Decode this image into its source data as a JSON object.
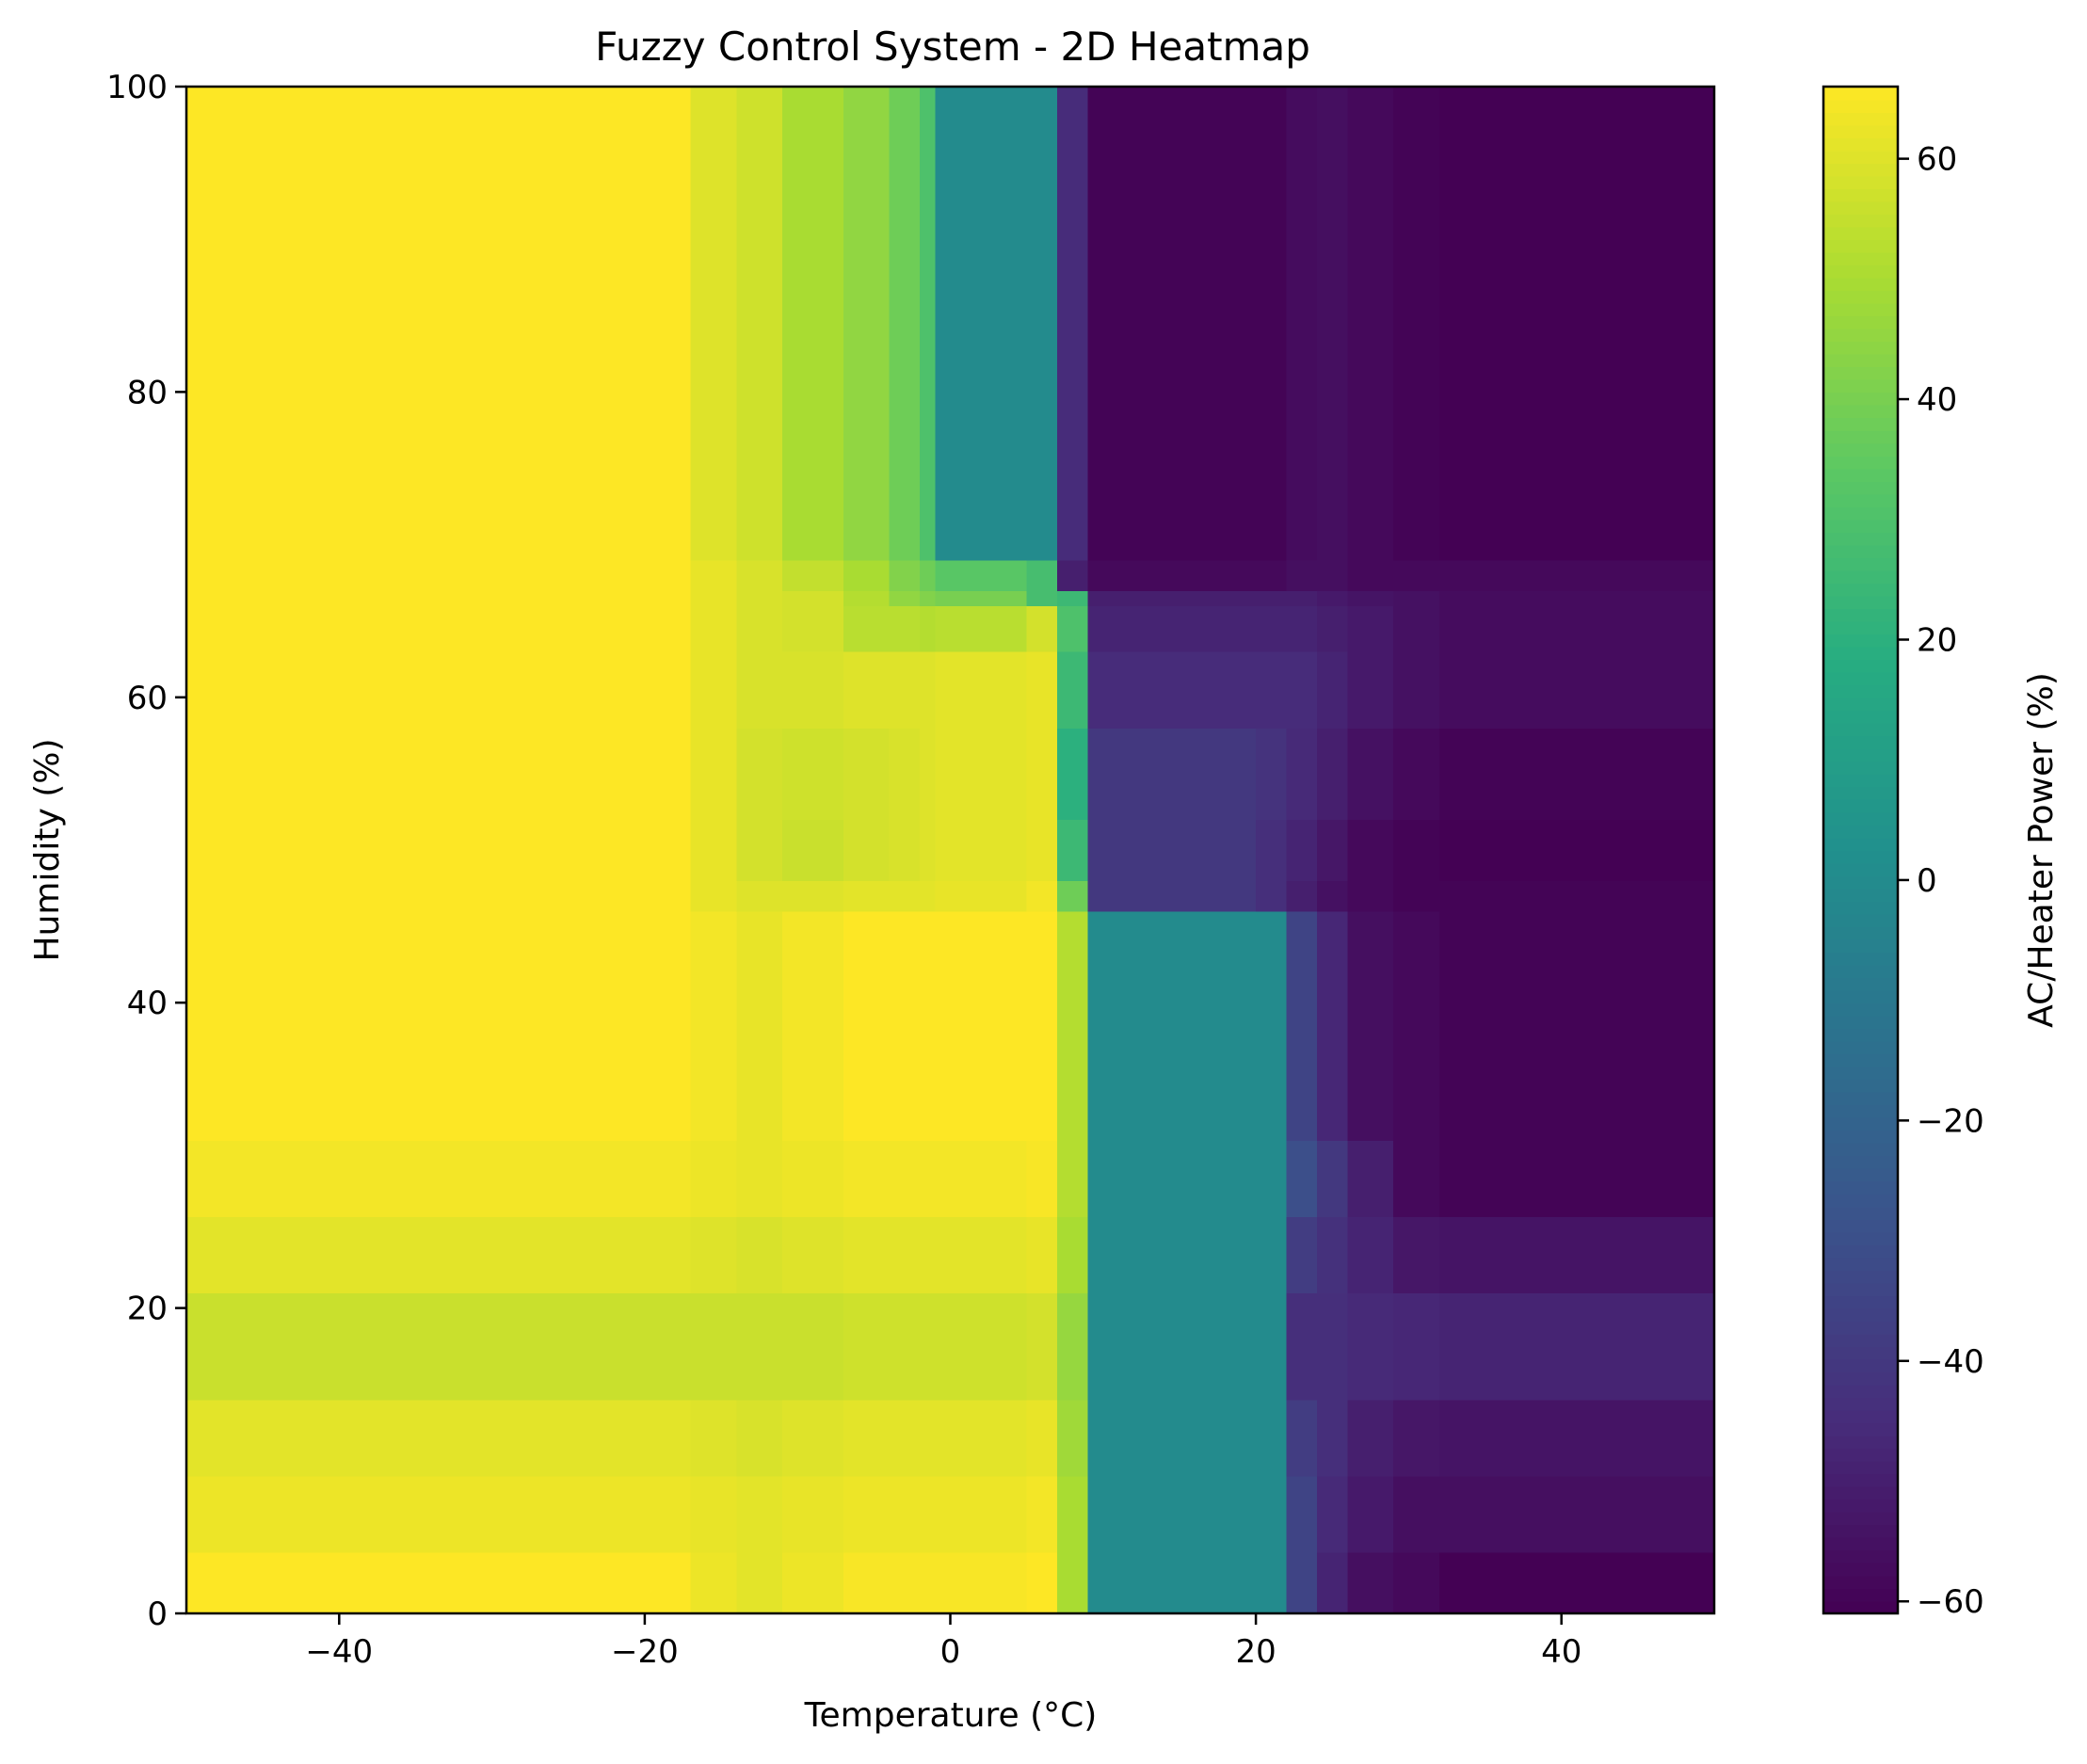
{
  "chart_data": {
    "type": "heatmap",
    "title": "Fuzzy Control System - 2D Heatmap",
    "xlabel": "Temperature (°C)",
    "ylabel": "Humidity (%)",
    "colorbar_label": "AC/Heater Power (%)",
    "colormap": "viridis",
    "xlim": [
      -50,
      50
    ],
    "ylim": [
      0,
      100
    ],
    "clim": [
      -61,
      66
    ],
    "xticks": [
      -40,
      -20,
      0,
      20,
      40
    ],
    "xtick_labels": [
      "−40",
      "−20",
      "0",
      "20",
      "40"
    ],
    "yticks": [
      0,
      20,
      40,
      60,
      80,
      100
    ],
    "ytick_labels": [
      "0",
      "20",
      "40",
      "60",
      "80",
      "100"
    ],
    "cticks": [
      -60,
      -40,
      -20,
      0,
      20,
      40,
      60
    ],
    "ctick_labels": [
      "−60",
      "−40",
      "−20",
      "0",
      "20",
      "40",
      "60"
    ],
    "x_edges": [
      -50,
      -17,
      -14,
      -11,
      -7,
      -4,
      -2,
      -1,
      5,
      7,
      9,
      20,
      22,
      24,
      26,
      29,
      32,
      50
    ],
    "y_edges": [
      0,
      4,
      9,
      14,
      21,
      26,
      31,
      46,
      48,
      52,
      58,
      63,
      66,
      67,
      69,
      100
    ],
    "values": [
      [
        66,
        63,
        61,
        63,
        65,
        65,
        65,
        65,
        66,
        50,
        0,
        0,
        -35,
        -48,
        -56,
        -58,
        -61
      ],
      [
        63,
        62,
        61,
        62,
        63,
        63,
        63,
        63,
        64,
        50,
        0,
        0,
        -35,
        -46,
        -52,
        -56,
        -56
      ],
      [
        61,
        60,
        59,
        60,
        61,
        61,
        61,
        61,
        62,
        48,
        0,
        0,
        -38,
        -44,
        -50,
        -53,
        -54
      ],
      [
        56,
        56,
        56,
        56,
        57,
        57,
        57,
        57,
        58,
        46,
        0,
        0,
        -44,
        -44,
        -46,
        -47,
        -48
      ],
      [
        61,
        60,
        59,
        60,
        61,
        61,
        61,
        61,
        62,
        50,
        0,
        0,
        -38,
        -43,
        -48,
        -53,
        -54
      ],
      [
        64,
        63,
        62,
        63,
        64,
        64,
        64,
        64,
        65,
        52,
        0,
        0,
        -30,
        -40,
        -50,
        -58,
        -60
      ],
      [
        66,
        64,
        62,
        64,
        66,
        66,
        66,
        66,
        66,
        52,
        0,
        0,
        -35,
        -47,
        -56,
        -58,
        -60
      ],
      [
        66,
        62,
        60,
        60,
        61,
        61,
        61,
        62,
        64,
        38,
        -40,
        -44,
        -50,
        -55,
        -58,
        -60,
        -60
      ],
      [
        66,
        62,
        58,
        56,
        58,
        59,
        60,
        61,
        62,
        25,
        -40,
        -44,
        -48,
        -53,
        -58,
        -60,
        -61
      ],
      [
        66,
        62,
        58,
        57,
        58,
        59,
        60,
        61,
        62,
        20,
        -40,
        -42,
        -46,
        -50,
        -55,
        -58,
        -60
      ],
      [
        66,
        62,
        59,
        59,
        60,
        60,
        60,
        61,
        62,
        25,
        -45,
        -45,
        -45,
        -48,
        -52,
        -55,
        -57
      ],
      [
        66,
        62,
        59,
        58,
        53,
        53,
        52,
        53,
        58,
        30,
        -48,
        -48,
        -48,
        -50,
        -52,
        -55,
        -57
      ],
      [
        66,
        62,
        59,
        58,
        52,
        45,
        42,
        40,
        28,
        25,
        -50,
        -50,
        -50,
        -52,
        -54,
        -55,
        -57
      ],
      [
        66,
        62,
        59,
        55,
        50,
        42,
        38,
        33,
        28,
        -50,
        -58,
        -58,
        -56,
        -56,
        -58,
        -58,
        -58
      ],
      [
        66,
        60,
        57,
        50,
        45,
        38,
        30,
        0,
        0,
        -45,
        -60,
        -60,
        -57,
        -56,
        -58,
        -60,
        -61
      ]
    ]
  }
}
